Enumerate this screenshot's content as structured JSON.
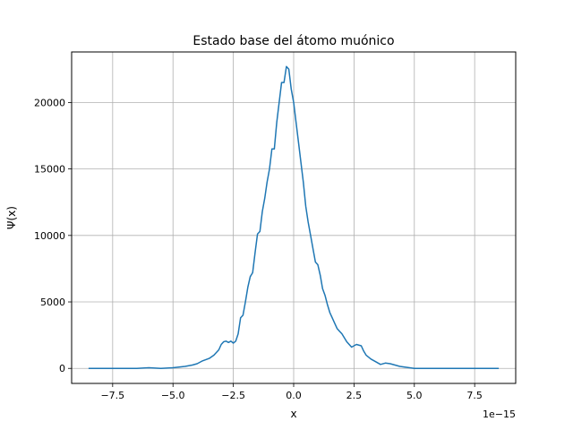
{
  "chart_data": {
    "type": "line",
    "title": "Estado base del átomo muónico",
    "xlabel": "x",
    "ylabel": "Ψ(x)",
    "x_offset_label": "1e−15",
    "xlim": [
      -9.2,
      9.2
    ],
    "ylim": [
      -1130,
      23800
    ],
    "xticks": [
      -7.5,
      -5.0,
      -2.5,
      0.0,
      2.5,
      5.0,
      7.5
    ],
    "xtick_labels": [
      "−7.5",
      "−5.0",
      "−2.5",
      "0.0",
      "2.5",
      "5.0",
      "7.5"
    ],
    "yticks": [
      0,
      5000,
      10000,
      15000,
      20000
    ],
    "ytick_labels": [
      "0",
      "5000",
      "10000",
      "15000",
      "20000"
    ],
    "grid": true,
    "series": [
      {
        "color": "#1f77b4",
        "x": [
          -8.5,
          -7.5,
          -6.5,
          -6.0,
          -5.5,
          -5.0,
          -4.5,
          -4.2,
          -4.0,
          -3.8,
          -3.5,
          -3.3,
          -3.1,
          -3.0,
          -2.9,
          -2.8,
          -2.7,
          -2.6,
          -2.5,
          -2.4,
          -2.3,
          -2.2,
          -2.1,
          -2.0,
          -1.9,
          -1.8,
          -1.7,
          -1.6,
          -1.5,
          -1.4,
          -1.3,
          -1.2,
          -1.1,
          -1.0,
          -0.9,
          -0.8,
          -0.7,
          -0.6,
          -0.5,
          -0.4,
          -0.3,
          -0.2,
          -0.1,
          0.0,
          0.1,
          0.2,
          0.3,
          0.4,
          0.5,
          0.6,
          0.7,
          0.8,
          0.9,
          1.0,
          1.1,
          1.2,
          1.3,
          1.4,
          1.5,
          1.6,
          1.7,
          1.8,
          1.9,
          2.0,
          2.2,
          2.4,
          2.6,
          2.8,
          2.9,
          3.0,
          3.2,
          3.4,
          3.6,
          3.8,
          4.0,
          4.2,
          4.4,
          4.6,
          4.8,
          5.0,
          5.5,
          6.0,
          7.0,
          8.5
        ],
        "y": [
          0,
          0,
          0,
          50,
          0,
          50,
          150,
          250,
          350,
          550,
          750,
          1000,
          1400,
          1800,
          2000,
          2050,
          1950,
          2050,
          1900,
          2050,
          2600,
          3800,
          4000,
          5000,
          6100,
          6900,
          7200,
          8700,
          10100,
          10300,
          11800,
          12800,
          14000,
          15000,
          16500,
          16500,
          18500,
          20000,
          21500,
          21500,
          22700,
          22500,
          21000,
          20000,
          18500,
          17000,
          15500,
          14000,
          12200,
          11000,
          10000,
          9000,
          8000,
          7800,
          7000,
          6000,
          5500,
          4800,
          4200,
          3800,
          3400,
          3000,
          2800,
          2600,
          2000,
          1600,
          1800,
          1700,
          1300,
          1000,
          700,
          500,
          300,
          400,
          350,
          250,
          150,
          100,
          50,
          0,
          0,
          0,
          0,
          0
        ]
      }
    ]
  }
}
